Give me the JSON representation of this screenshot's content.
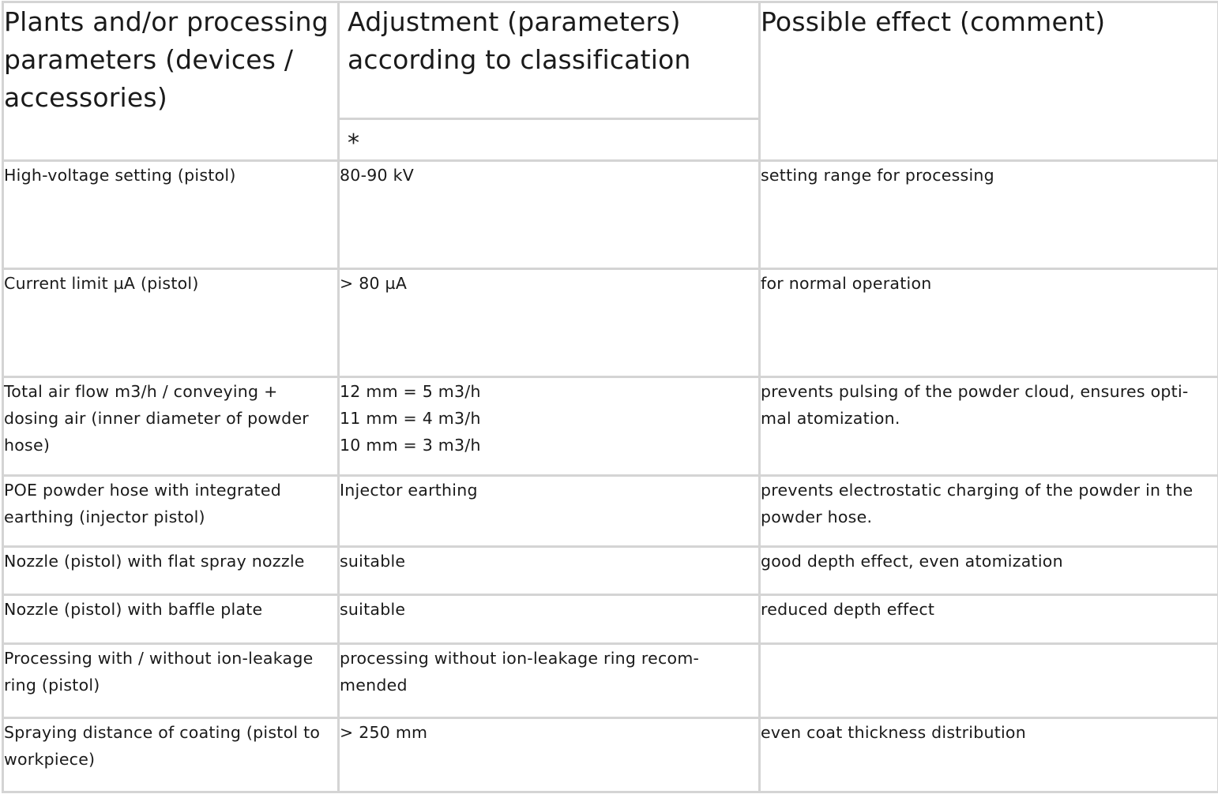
{
  "table": {
    "headers": {
      "col1": "Plants and/or processing parameters (devices / accessories)",
      "col2": "Adjustment (parameters) according to classification",
      "col2_sub": "*",
      "col3": "Possible effect (comment)"
    },
    "rows": [
      {
        "parameter": "High-voltage setting (pistol)",
        "adjustment": "80-90 kV",
        "effect": "setting range for processing"
      },
      {
        "parameter": "Current limit µA (pistol)",
        "adjustment": "> 80 µA",
        "effect": "for normal operation"
      },
      {
        "parameter": "Total air flow m3/h / conveying + dosing air (inner diameter of powder hose)",
        "adjustment_lines": [
          "12 mm = 5 m3/h",
          "11 mm = 4 m3/h",
          "10 mm = 3 m3/h"
        ],
        "effect": "prevents pulsing of the powder cloud, ensures opti-mal atomization."
      },
      {
        "parameter": "POE powder hose with integrated earthing (injector pistol)",
        "adjustment": "Injector earthing",
        "effect": "prevents electrostatic charging of the powder in the powder hose."
      },
      {
        "parameter": "Nozzle (pistol) with flat spray nozzle",
        "adjustment": "suitable",
        "effect": "good depth effect, even atomization"
      },
      {
        "parameter": "Nozzle (pistol) with baffle plate",
        "adjustment": "suitable",
        "effect": "reduced depth effect"
      },
      {
        "parameter": "Processing with / without ion-leakage ring (pistol)",
        "adjustment": "processing without ion-leakage ring recom-mended",
        "effect": ""
      },
      {
        "parameter": "Spraying distance of coating (pistol to workpiece)",
        "adjustment": "> 250 mm",
        "effect": "even coat thickness distribution"
      }
    ]
  }
}
